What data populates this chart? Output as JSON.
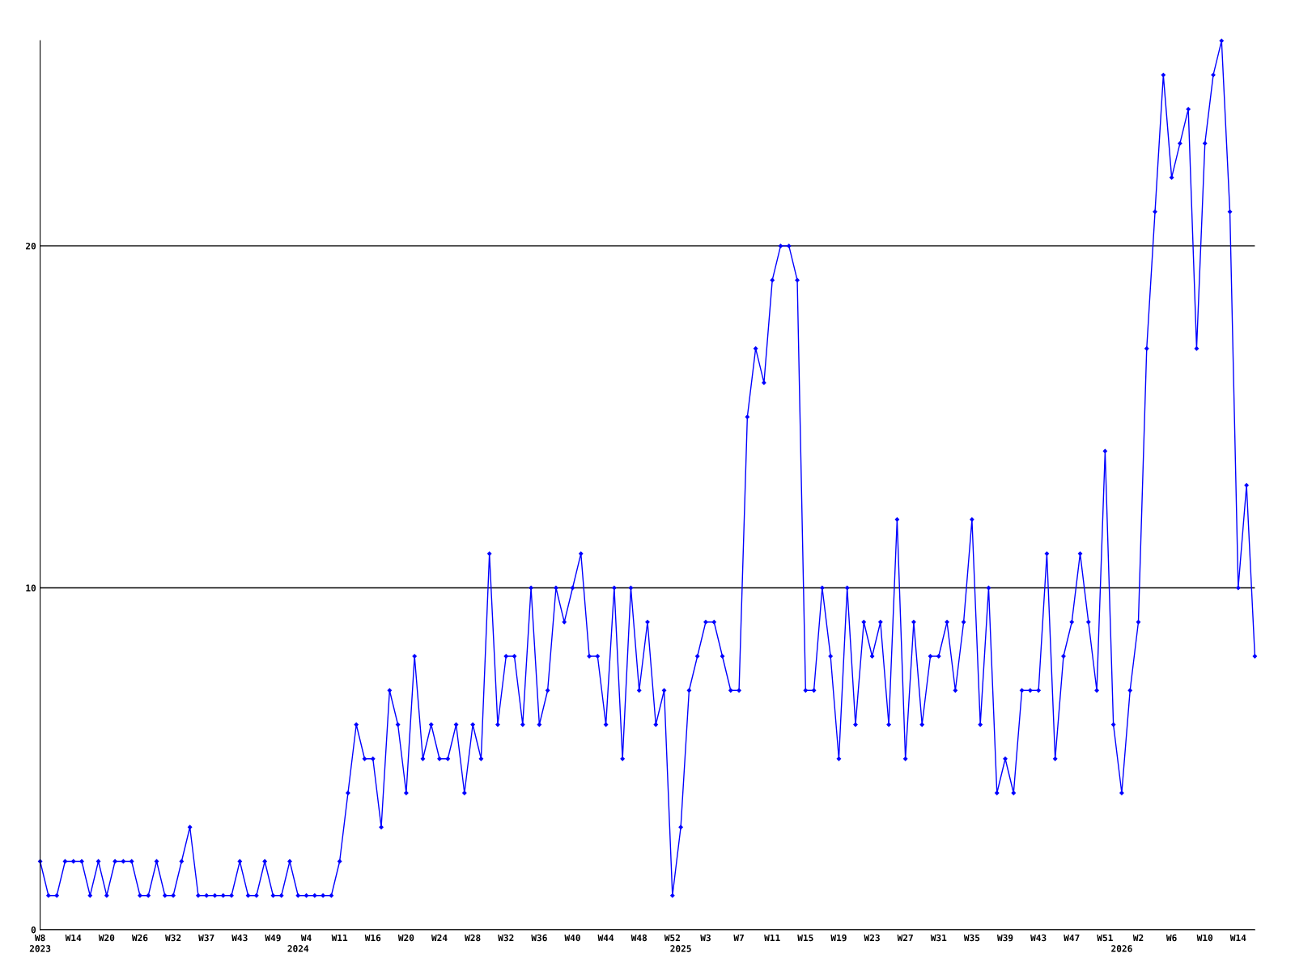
{
  "chart_data": {
    "type": "line",
    "categories": [
      "W8\n2023",
      null,
      null,
      null,
      "W14",
      null,
      null,
      null,
      "W20",
      null,
      null,
      null,
      "W26",
      null,
      null,
      null,
      "W32",
      null,
      null,
      null,
      "W37",
      null,
      null,
      null,
      "W43",
      null,
      null,
      null,
      "W49",
      null,
      null,
      "\n2024",
      "W4",
      null,
      null,
      null,
      "W11",
      null,
      null,
      null,
      "W16",
      null,
      null,
      null,
      "W20",
      null,
      null,
      null,
      "W24",
      null,
      null,
      null,
      "W28",
      null,
      null,
      null,
      "W32",
      null,
      null,
      null,
      "W36",
      null,
      null,
      null,
      "W40",
      null,
      null,
      null,
      "W44",
      null,
      null,
      null,
      "W48",
      null,
      null,
      null,
      "W52",
      "\n2025",
      null,
      null,
      "W3",
      null,
      null,
      null,
      "W7",
      null,
      null,
      null,
      "W11",
      null,
      null,
      null,
      "W15",
      null,
      null,
      null,
      "W19",
      null,
      null,
      null,
      "W23",
      null,
      null,
      null,
      "W27",
      null,
      null,
      null,
      "W31",
      null,
      null,
      null,
      "W35",
      null,
      null,
      null,
      "W39",
      null,
      null,
      null,
      "W43",
      null,
      null,
      null,
      "W47",
      null,
      null,
      null,
      "W51",
      null,
      "\n2026",
      null,
      "W2",
      null,
      null,
      null,
      "W6",
      null,
      null,
      null,
      "W10",
      null,
      null,
      null,
      "W14",
      null,
      null
    ],
    "series": [
      {
        "color": "#0000ff",
        "values": [
          2,
          1,
          1,
          2,
          2,
          2,
          1,
          2,
          1,
          2,
          2,
          2,
          1,
          1,
          2,
          1,
          1,
          2,
          3,
          1,
          1,
          1,
          1,
          1,
          2,
          1,
          1,
          2,
          1,
          1,
          2,
          1,
          1,
          1,
          1,
          1,
          2,
          4,
          6,
          5,
          5,
          3,
          7,
          6,
          4,
          8,
          5,
          6,
          5,
          5,
          6,
          4,
          6,
          5,
          11,
          6,
          8,
          8,
          6,
          10,
          6,
          7,
          10,
          9,
          10,
          11,
          8,
          8,
          6,
          10,
          5,
          10,
          7,
          9,
          6,
          7,
          1,
          3,
          7,
          8,
          9,
          9,
          8,
          7,
          7,
          15,
          17,
          16,
          19,
          20,
          20,
          19,
          7,
          7,
          10,
          8,
          5,
          10,
          6,
          9,
          8,
          9,
          6,
          12,
          5,
          9,
          6,
          8,
          8,
          9,
          7,
          9,
          12,
          6,
          10,
          4,
          5,
          4,
          7,
          7,
          7,
          11,
          5,
          8,
          9,
          11,
          9,
          7,
          14,
          6,
          4,
          7,
          9,
          17,
          21,
          25,
          22,
          23,
          24,
          17,
          23,
          25,
          26,
          21,
          10,
          13,
          8
        ]
      }
    ],
    "ylim": [
      0,
      26
    ],
    "yticks": [
      0,
      10,
      20
    ],
    "grid": "y",
    "marker": "diamond",
    "line_style": "solid"
  }
}
